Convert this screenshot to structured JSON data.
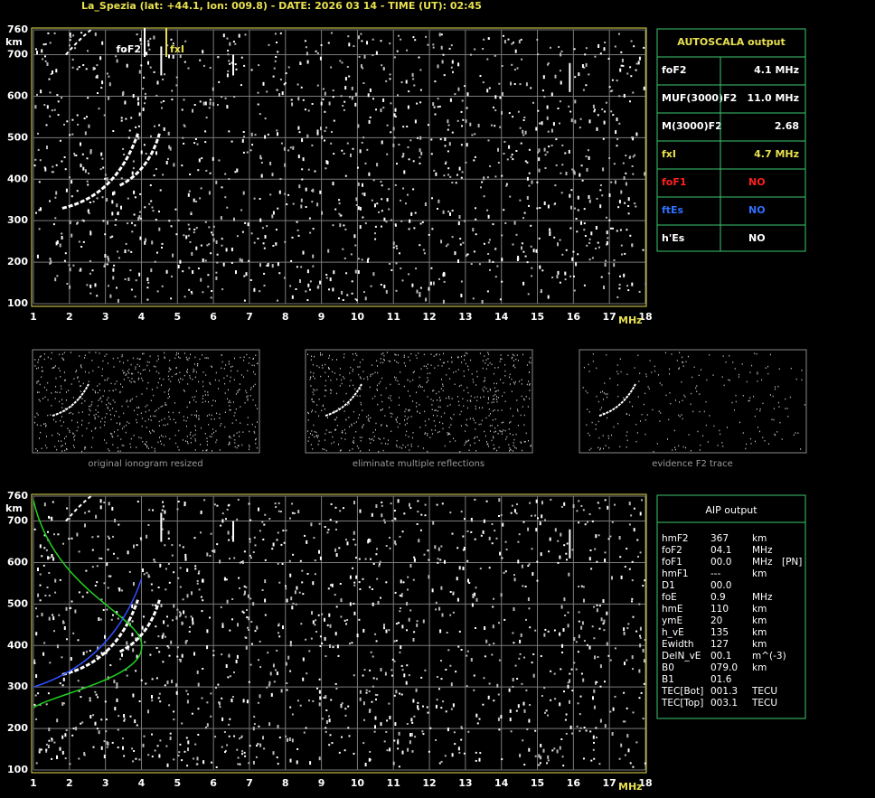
{
  "header": {
    "title": "La_Spezia (lat: +44.1, lon: 009.8) - DATE: 2026 03 14 - TIME (UT): 02:45"
  },
  "plots": {
    "y_label": "km",
    "x_label": "MHz",
    "yticks": [
      760,
      700,
      600,
      500,
      400,
      300,
      200,
      100
    ],
    "xticks": [
      1,
      2,
      3,
      4,
      5,
      6,
      7,
      8,
      9,
      10,
      11,
      12,
      13,
      14,
      15,
      16,
      17,
      18
    ],
    "markers": {
      "fof2": "foF2",
      "fxi": "fxI"
    }
  },
  "autoscala": {
    "title": "AUTOSCALA output",
    "rows": [
      {
        "label": "foF2",
        "value": "4.1 MHz",
        "color": "#ffffff"
      },
      {
        "label": "MUF(3000)F2",
        "value": "11.0 MHz",
        "color": "#ffffff"
      },
      {
        "label": "M(3000)F2",
        "value": "2.68",
        "color": "#ffffff"
      },
      {
        "label": "fxI",
        "value": "4.7 MHz",
        "color": "#e8e050"
      },
      {
        "label": "foF1",
        "value": "NO",
        "color": "#ff2020"
      },
      {
        "label": "ftEs",
        "value": "NO",
        "color": "#3070ff"
      },
      {
        "label": "h'Es",
        "value": "NO",
        "color": "#ffffff"
      }
    ]
  },
  "thumbnails": [
    "original ionogram resized",
    "eliminate multiple reflections",
    "evidence F2 trace"
  ],
  "aip": {
    "title": "AIP output",
    "rows": [
      [
        "hmF2",
        "367",
        "km"
      ],
      [
        "foF2",
        "04.1",
        "MHz"
      ],
      [
        "foF1",
        "00.0",
        "MHz",
        "[PN]"
      ],
      [
        "hmF1",
        "---",
        "km"
      ],
      [
        "D1",
        "00.0"
      ],
      [
        "foE",
        "0.9",
        "MHz"
      ],
      [
        "hmE",
        "110",
        "km"
      ],
      [
        "ymE",
        "20",
        "km"
      ],
      [
        "h_vE",
        "135",
        "km"
      ],
      [
        "Ewidth",
        "127",
        "km"
      ],
      [
        "DelN_vE",
        "00.1",
        "m^(-3)"
      ],
      [
        "B0",
        "079.0",
        "km"
      ],
      [
        "B1",
        "01.6"
      ],
      [
        "TEC[Bot]",
        "001.3",
        "TECU"
      ],
      [
        "TEC[Top]",
        "003.1",
        "TECU"
      ]
    ]
  }
}
